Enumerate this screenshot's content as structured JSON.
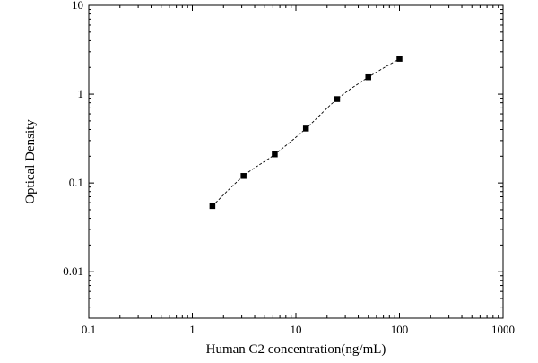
{
  "chart_data": {
    "type": "scatter",
    "title": "",
    "xlabel": "Human C2 concentration(ng/mL)",
    "ylabel": "Optical Density",
    "x_scale": "log",
    "y_scale": "log",
    "xlim": [
      0.1,
      1000
    ],
    "ylim": [
      0.003,
      10
    ],
    "x_ticks": [
      {
        "value": 0.1,
        "label": "0.1"
      },
      {
        "value": 1,
        "label": "1"
      },
      {
        "value": 10,
        "label": "10"
      },
      {
        "value": 100,
        "label": "100"
      },
      {
        "value": 1000,
        "label": "1000"
      }
    ],
    "y_ticks": [
      {
        "value": 0.01,
        "label": "0.01"
      },
      {
        "value": 0.1,
        "label": "0.1"
      },
      {
        "value": 1,
        "label": "1"
      },
      {
        "value": 10,
        "label": "10"
      }
    ],
    "grid": false,
    "legend": "none",
    "series": [
      {
        "points": [
          {
            "x": 1.5625,
            "y": 0.055
          },
          {
            "x": 3.125,
            "y": 0.12
          },
          {
            "x": 6.25,
            "y": 0.21
          },
          {
            "x": 12.5,
            "y": 0.41
          },
          {
            "x": 25,
            "y": 0.88
          },
          {
            "x": 50,
            "y": 1.55
          },
          {
            "x": 100,
            "y": 2.5
          }
        ],
        "marker": "square",
        "fit_line": "dashed",
        "color": "#000000"
      }
    ]
  }
}
